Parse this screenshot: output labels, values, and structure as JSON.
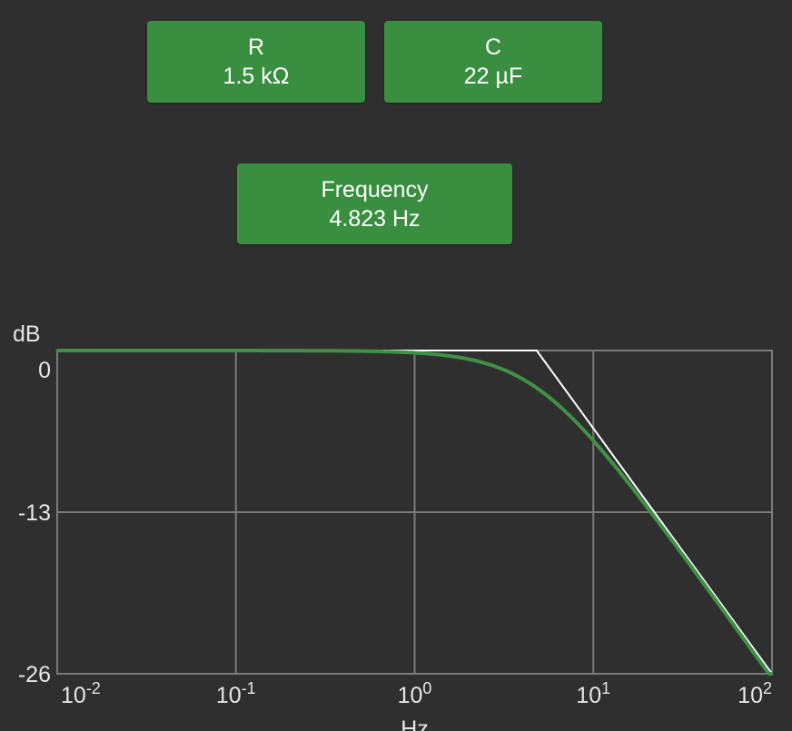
{
  "controls": {
    "resistor": {
      "label": "R",
      "value": "1.5 kΩ"
    },
    "capacitor": {
      "label": "C",
      "value": "22 µF"
    },
    "frequency": {
      "label": "Frequency",
      "value": "4.823 Hz"
    }
  },
  "colors": {
    "background": "#2f2f2f",
    "button": "#3a8e3f",
    "response_curve": "#3f9146",
    "asymptote": "#ffffff",
    "grid": "#7a7a7a"
  },
  "chart_data": {
    "type": "line",
    "xscale": "log",
    "xlim": [
      0.01,
      100
    ],
    "ylim": [
      -26,
      0
    ],
    "xlabel": "Hz",
    "ylabel": "dB",
    "x_ticks": [
      {
        "base": "10",
        "exp": "-2",
        "value": 0.01
      },
      {
        "base": "10",
        "exp": "-1",
        "value": 0.1
      },
      {
        "base": "10",
        "exp": "0",
        "value": 1
      },
      {
        "base": "10",
        "exp": "1",
        "value": 10
      },
      {
        "base": "10",
        "exp": "2",
        "value": 100
      }
    ],
    "y_ticks": [
      {
        "label": "0",
        "value": 0
      },
      {
        "label": "-13",
        "value": -13
      },
      {
        "label": "-26",
        "value": -26
      }
    ],
    "grid": true,
    "cutoff_hz": 4.823,
    "series": [
      {
        "x": [
          0.01,
          0.1,
          0.5,
          1,
          2,
          3,
          4.823,
          7,
          10,
          20,
          30,
          50,
          100
        ],
        "y": [
          0,
          0,
          -0.05,
          -0.2,
          -0.7,
          -1.4,
          -3.0,
          -4.9,
          -7.0,
          -12.6,
          -16.0,
          -20.4,
          -26.4
        ]
      },
      {
        "x": [
          0.01,
          4.823,
          100
        ],
        "y": [
          0,
          0,
          -26.3
        ]
      }
    ]
  }
}
